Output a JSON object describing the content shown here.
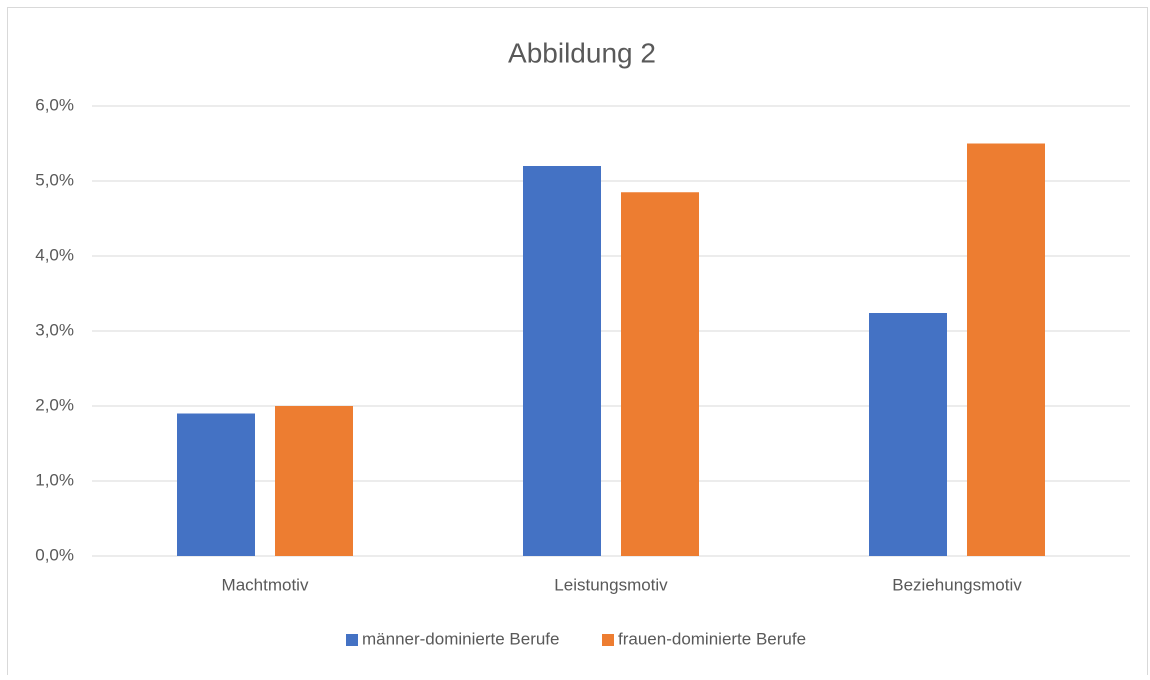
{
  "chart_data": {
    "type": "bar",
    "title": "Abbildung 2",
    "categories": [
      "Machtmotiv",
      "Leistungsmotiv",
      "Beziehungsmotiv"
    ],
    "series": [
      {
        "name": "männer-dominierte Berufe",
        "color": "#4472c4",
        "values": [
          1.9,
          5.2,
          3.24
        ]
      },
      {
        "name": "frauen-dominierte Berufe",
        "color": "#ed7d31",
        "values": [
          2.0,
          4.85,
          5.5
        ]
      }
    ],
    "ylim": [
      0,
      6
    ],
    "yticks": [
      {
        "value": 0,
        "label": "0,0%"
      },
      {
        "value": 1,
        "label": "1,0%"
      },
      {
        "value": 2,
        "label": "2,0%"
      },
      {
        "value": 3,
        "label": "3,0%"
      },
      {
        "value": 4,
        "label": "4,0%"
      },
      {
        "value": 5,
        "label": "5,0%"
      },
      {
        "value": 6,
        "label": "6,0%"
      }
    ],
    "grid": true,
    "legend": "bottom"
  }
}
